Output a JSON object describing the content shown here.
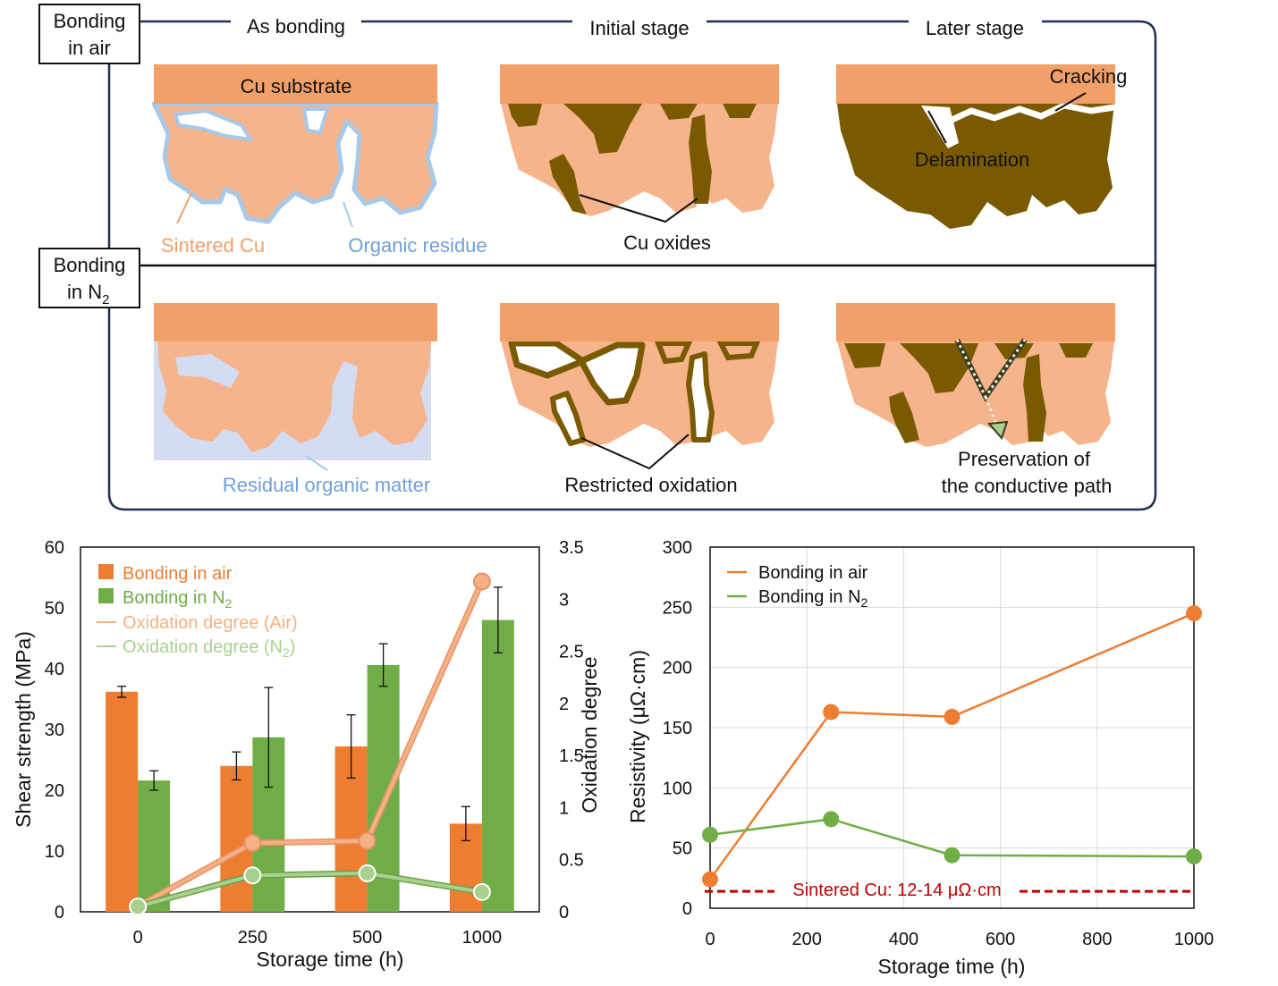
{
  "schematic": {
    "air_label_line1": "Bonding",
    "air_label_line2": "in air",
    "n2_label_line1": "Bonding",
    "n2_label_line2_prefix": "in N",
    "n2_label_sub": "2",
    "stage_as_bonding": "As bonding",
    "stage_initial": "Initial stage",
    "stage_later": "Later stage",
    "cu_substrate": "Cu substrate",
    "sintered_cu": "Sintered Cu",
    "organic_residue": "Organic residue",
    "cu_oxides": "Cu oxides",
    "cracking": "Cracking",
    "delamination": "Delamination",
    "residual_organic": "Residual organic matter",
    "restricted_oxidation": "Restricted oxidation",
    "preservation_line1": "Preservation of",
    "preservation_line2": "the conductive path",
    "colors": {
      "substrate": "#F0A068",
      "sintered": "#F5B48C",
      "oxide": "#7A5A00",
      "organic": "#A8C8E8",
      "residual": "#D4DCF2",
      "frame": "#1F3050"
    }
  },
  "chart_data": [
    {
      "type": "bar",
      "categories": [
        "0",
        "250",
        "500",
        "1000"
      ],
      "series": [
        {
          "name": "Bonding in air",
          "values": [
            36.2,
            24.0,
            27.2,
            14.5
          ],
          "errors": [
            0.9,
            2.3,
            5.2,
            2.8
          ],
          "color": "#ED7D31"
        },
        {
          "name": "Bonding in N2",
          "values": [
            21.6,
            28.7,
            40.6,
            48.0
          ],
          "errors": [
            1.6,
            8.2,
            3.5,
            5.4
          ],
          "color": "#70AD47"
        }
      ],
      "secondary": [
        {
          "name": "Oxidation degree (Air)",
          "values": [
            0.05,
            0.66,
            0.68,
            3.17
          ],
          "color": "#F4B183"
        },
        {
          "name": "Oxidation degree (N2)",
          "values": [
            0.05,
            0.35,
            0.37,
            0.19
          ],
          "color": "#A9D18E"
        }
      ],
      "legend": [
        {
          "prefix": "Bonding in air",
          "sub": ""
        },
        {
          "prefix": "Bonding in N",
          "sub": "2"
        },
        {
          "prefix": "Oxidation degree (Air)",
          "sub": ""
        },
        {
          "prefix": "Oxidation degree (N",
          "sub": "2",
          "suffix": ")"
        }
      ],
      "xlabel": "Storage time (h)",
      "ylabel": "Shear strength (MPa)",
      "y2label": "Oxidation degree",
      "ylim": [
        0,
        60
      ],
      "yticks": [
        "0",
        "10",
        "20",
        "30",
        "40",
        "50",
        "60"
      ],
      "y2lim": [
        0,
        3.5
      ],
      "y2ticks": [
        "0",
        "0.5",
        "1",
        "1.5",
        "2",
        "2.5",
        "3",
        "3.5"
      ]
    },
    {
      "type": "line",
      "series": [
        {
          "name": "Bonding in air",
          "x": [
            0,
            250,
            500,
            1000
          ],
          "values": [
            24,
            163,
            159,
            245
          ],
          "color": "#ED7D31"
        },
        {
          "name": "Bonding in N2",
          "x": [
            0,
            250,
            500,
            1000
          ],
          "values": [
            61,
            74,
            44,
            43
          ],
          "color": "#70AD47"
        }
      ],
      "legend": [
        {
          "prefix": "Bonding in air",
          "sub": ""
        },
        {
          "prefix": "Bonding in N",
          "sub": "2"
        }
      ],
      "reference": {
        "label": "Sintered Cu: 12-14 μΩ·cm",
        "value": 14,
        "color": "#C00000"
      },
      "xlabel": "Storage time (h)",
      "ylabel": "Resistivity (μΩ·cm)",
      "xlim": [
        0,
        1000
      ],
      "xticks": [
        "0",
        "200",
        "400",
        "600",
        "800",
        "1000"
      ],
      "ylim": [
        0,
        300
      ],
      "yticks": [
        "0",
        "50",
        "100",
        "150",
        "200",
        "250",
        "300"
      ]
    }
  ]
}
